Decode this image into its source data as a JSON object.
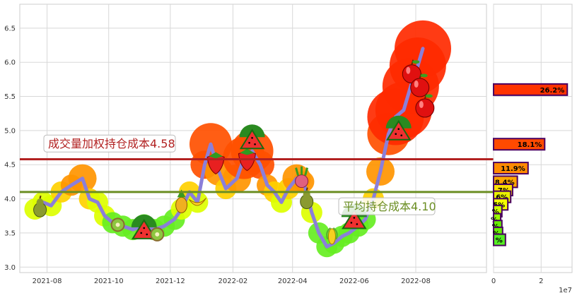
{
  "chart_data": [
    {
      "type": "line",
      "x_ticks": [
        "2021-08",
        "2021-10",
        "2021-12",
        "2022-02",
        "2022-04",
        "2022-06",
        "2022-08"
      ],
      "y_ticks": [
        "3.0",
        "3.5",
        "4.0",
        "4.5",
        "5.0",
        "5.5",
        "6.0",
        "6.5"
      ],
      "ylim": [
        2.92,
        6.85
      ],
      "xlim": [
        "2021-07-05",
        "2022-10-10"
      ],
      "grid": true,
      "series": [
        {
          "color": "#8B7FD9",
          "x": [
            "2021-07-20",
            "2021-07-28",
            "2021-08-05",
            "2021-08-15",
            "2021-08-25",
            "2021-09-05",
            "2021-09-12",
            "2021-09-20",
            "2021-09-27",
            "2021-10-05",
            "2021-10-15",
            "2021-10-25",
            "2021-11-05",
            "2021-11-15",
            "2021-11-25",
            "2021-12-05",
            "2021-12-12",
            "2021-12-20",
            "2021-12-28",
            "2022-01-04",
            "2022-01-10",
            "2022-01-18",
            "2022-01-25",
            "2022-02-05",
            "2022-02-12",
            "2022-02-20",
            "2022-02-28",
            "2022-03-07",
            "2022-03-14",
            "2022-03-21",
            "2022-03-28",
            "2022-04-05",
            "2022-04-12",
            "2022-04-20",
            "2022-04-27",
            "2022-05-05",
            "2022-05-12",
            "2022-05-20",
            "2022-05-27",
            "2022-06-05",
            "2022-06-12",
            "2022-06-20",
            "2022-06-27",
            "2022-07-05",
            "2022-07-12",
            "2022-07-20",
            "2022-07-27",
            "2022-08-03",
            "2022-08-08"
          ],
          "y": [
            3.85,
            3.95,
            3.9,
            4.1,
            4.2,
            4.3,
            4.0,
            3.95,
            3.75,
            3.65,
            3.6,
            3.55,
            3.62,
            3.55,
            3.6,
            3.7,
            3.85,
            4.1,
            3.95,
            4.5,
            4.8,
            4.4,
            4.15,
            4.3,
            4.6,
            4.7,
            4.5,
            4.2,
            4.1,
            3.95,
            4.15,
            4.3,
            4.25,
            3.8,
            3.5,
            3.3,
            3.35,
            3.45,
            3.5,
            3.6,
            3.7,
            4.0,
            4.4,
            4.95,
            5.2,
            5.3,
            5.65,
            5.95,
            6.2
          ]
        }
      ],
      "lines": [
        {
          "label": "成交量加权持仓成本4.58",
          "value": 4.58,
          "color": "#B22222"
        },
        {
          "label": "平均持仓成本4.10",
          "value": 4.1,
          "color": "#6B8E23"
        }
      ],
      "markers": [
        {
          "x": "2021-07-25",
          "y": 3.88,
          "fruit": "pear"
        },
        {
          "x": "2021-10-10",
          "y": 3.62,
          "fruit": "kiwi"
        },
        {
          "x": "2021-11-05",
          "y": 3.5,
          "fruit": "watermelon"
        },
        {
          "x": "2021-11-18",
          "y": 3.48,
          "fruit": "kiwi"
        },
        {
          "x": "2021-12-12",
          "y": 3.95,
          "fruit": "pineapple"
        },
        {
          "x": "2021-12-28",
          "y": 3.95,
          "fruit": "banana"
        },
        {
          "x": "2022-01-15",
          "y": 4.55,
          "fruit": "strawberry"
        },
        {
          "x": "2022-02-15",
          "y": 4.6,
          "fruit": "strawberry"
        },
        {
          "x": "2022-02-20",
          "y": 4.82,
          "fruit": "watermelon"
        },
        {
          "x": "2022-04-10",
          "y": 4.3,
          "fruit": "radish"
        },
        {
          "x": "2022-04-15",
          "y": 4.0,
          "fruit": "pear"
        },
        {
          "x": "2022-05-10",
          "y": 3.45,
          "fruit": "corn"
        },
        {
          "x": "2022-06-01",
          "y": 3.65,
          "fruit": "watermelon"
        },
        {
          "x": "2022-07-15",
          "y": 4.95,
          "fruit": "watermelon"
        },
        {
          "x": "2022-07-28",
          "y": 5.85,
          "fruit": "apple"
        },
        {
          "x": "2022-08-05",
          "y": 5.65,
          "fruit": "apple"
        },
        {
          "x": "2022-08-10",
          "y": 5.35,
          "fruit": "apple"
        }
      ]
    },
    {
      "type": "bar",
      "orientation": "horizontal",
      "x_ticks": [
        "0",
        "2"
      ],
      "x_exponent": "1e7",
      "xlim": [
        0,
        3.3
      ],
      "grid": true,
      "bars": [
        {
          "label": "26.2%",
          "price": 5.6,
          "value": 3.1,
          "color": "#FF3300"
        },
        {
          "label": "18.1%",
          "price": 4.8,
          "value": 2.15,
          "color": "#FF4A00"
        },
        {
          "label": "11.9%",
          "price": 4.45,
          "value": 1.45,
          "color": "#FF8A00"
        },
        {
          "label": "8.4%",
          "price": 4.25,
          "value": 1.0,
          "color": "#FFA500"
        },
        {
          "label": "7%",
          "price": 4.13,
          "value": 0.8,
          "color": "#FFE000"
        },
        {
          "label": "6%",
          "price": 4.03,
          "value": 0.72,
          "color": "#E8F000"
        },
        {
          "label": "5%",
          "price": 3.92,
          "value": 0.6,
          "color": "#F5FF00"
        },
        {
          "label": "%",
          "price": 3.82,
          "value": 0.35,
          "color": "#CCFF00"
        },
        {
          "label": "%",
          "price": 3.7,
          "value": 0.3,
          "color": "#99FF00"
        },
        {
          "label": "%",
          "price": 3.6,
          "value": 0.35,
          "color": "#66EE00"
        },
        {
          "label": "%",
          "price": 3.5,
          "value": 0.38,
          "color": "#66EE00"
        },
        {
          "label": "%",
          "price": 3.4,
          "value": 0.5,
          "color": "#55EE22"
        }
      ]
    }
  ]
}
